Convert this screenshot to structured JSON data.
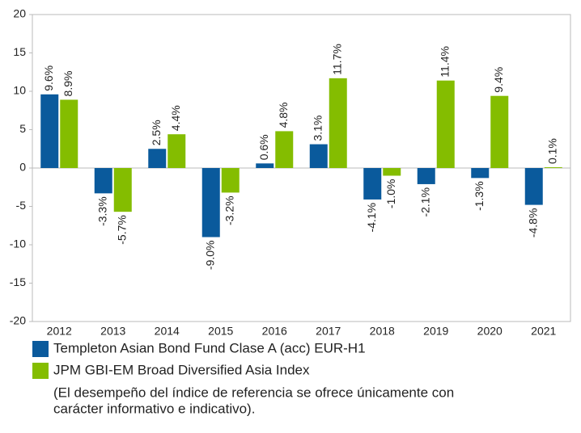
{
  "chart_data": {
    "type": "bar",
    "categories": [
      "2012",
      "2013",
      "2014",
      "2015",
      "2016",
      "2017",
      "2018",
      "2019",
      "2020",
      "2021"
    ],
    "series": [
      {
        "name": "Templeton Asian Bond Fund Clase A (acc) EUR-H1",
        "color": "#0a5a9c",
        "values": [
          9.6,
          -3.3,
          2.5,
          -9.0,
          0.6,
          3.1,
          -4.1,
          -2.1,
          -1.3,
          -4.8
        ],
        "value_labels": [
          "9.6%",
          "-3.3%",
          "2.5%",
          "-9.0%",
          "0.6%",
          "3.1%",
          "-4.1%",
          "-2.1%",
          "-1.3%",
          "-4.8%"
        ]
      },
      {
        "name": "JPM GBI-EM Broad Diversified Asia Index",
        "color": "#84bd00",
        "values": [
          8.9,
          -5.7,
          4.4,
          -3.2,
          4.8,
          11.7,
          -1.0,
          11.4,
          9.4,
          0.1
        ],
        "value_labels": [
          "8.9%",
          "-5.7%",
          "4.4%",
          "-3.2%",
          "4.8%",
          "11.7%",
          "-1.0%",
          "11.4%",
          "9.4%",
          "0.1%"
        ]
      }
    ],
    "ylim": [
      -20,
      20
    ],
    "yticks": [
      -20,
      -15,
      -10,
      -5,
      0,
      5,
      10,
      15,
      20
    ],
    "grid": false,
    "note": [
      "(El desempeño del índice de referencia se ofrece únicamente con",
      "carácter informativo e indicativo)."
    ]
  }
}
